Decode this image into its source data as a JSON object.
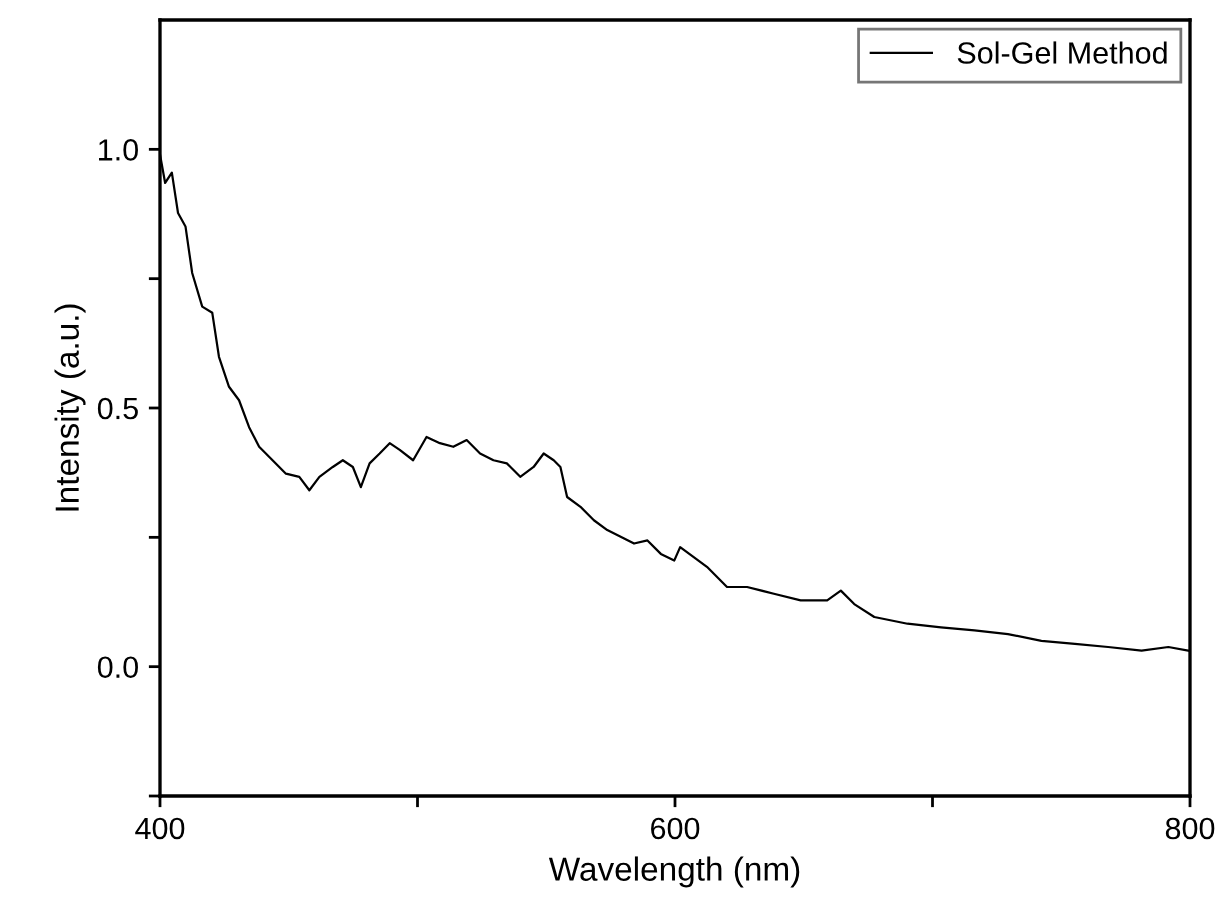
{
  "chart_data": {
    "type": "line",
    "xlabel": "Wavelength (nm)",
    "ylabel": "Intensity (a.u.)",
    "xlim": [
      400,
      800
    ],
    "ylim": [
      -0.25,
      1.25
    ],
    "xticks": [
      400,
      {
        "value": 500,
        "label": null
      },
      600,
      {
        "value": 700,
        "label": null
      },
      800
    ],
    "yticks": [
      {
        "value": -0.25,
        "label": null
      },
      {
        "value": 0,
        "label": "0.0"
      },
      {
        "value": 0.25,
        "label": null
      },
      0.5,
      {
        "value": 0.75,
        "label": null
      },
      {
        "value": 1,
        "label": "1.0"
      }
    ],
    "grid": false,
    "legend": "top right",
    "marker": "none",
    "line_style": "solid",
    "series": [
      {
        "name": "Sol-Gel Method",
        "color": "#000000",
        "x": [
          400,
          402,
          404.6,
          407,
          409.9,
          412.5,
          416.4,
          420.3,
          422.9,
          426.8,
          430.7,
          434.6,
          438.5,
          443.7,
          448.9,
          454.1,
          458,
          461.9,
          467.1,
          471,
          474.9,
          478,
          481.4,
          485.3,
          489.2,
          493.1,
          498.3,
          503.5,
          508.7,
          513.9,
          519.1,
          524.3,
          529.5,
          534.7,
          539.9,
          545.1,
          549,
          552.9,
          555.5,
          558.1,
          563.3,
          568.5,
          573.7,
          578.9,
          584.1,
          589.3,
          594.5,
          599.7,
          602,
          612.4,
          620.2,
          628,
          638.4,
          648.8,
          659.1,
          664.4,
          669.6,
          677.4,
          690.3,
          703.3,
          716.3,
          729.3,
          742.3,
          755.3,
          768.2,
          781.2,
          791.6,
          799.4
        ],
        "values": [
          0.99,
          0.935,
          0.955,
          0.877,
          0.851,
          0.761,
          0.696,
          0.684,
          0.599,
          0.541,
          0.515,
          0.463,
          0.425,
          0.399,
          0.373,
          0.367,
          0.341,
          0.367,
          0.386,
          0.399,
          0.386,
          0.347,
          0.393,
          0.412,
          0.432,
          0.419,
          0.399,
          0.444,
          0.432,
          0.425,
          0.438,
          0.412,
          0.399,
          0.393,
          0.367,
          0.386,
          0.412,
          0.399,
          0.386,
          0.328,
          0.309,
          0.283,
          0.264,
          0.251,
          0.238,
          0.244,
          0.218,
          0.205,
          0.231,
          0.193,
          0.154,
          0.154,
          0.141,
          0.128,
          0.128,
          0.147,
          0.121,
          0.096,
          0.083,
          0.076,
          0.07,
          0.063,
          0.05,
          0.044,
          0.038,
          0.031,
          0.038,
          0.031
        ]
      }
    ]
  }
}
